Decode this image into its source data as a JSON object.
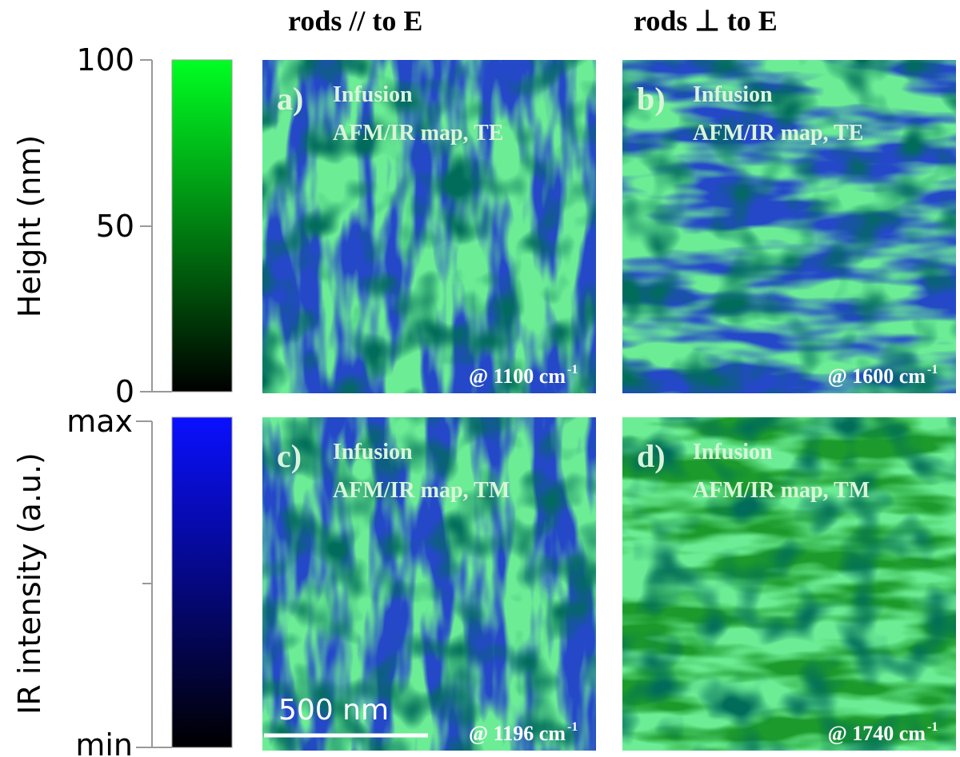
{
  "columns": [
    "rods  // to E",
    "rods ⊥ to E"
  ],
  "height_bar": {
    "label": "Height (nm)",
    "ticks": [
      "100",
      "50",
      "0"
    ]
  },
  "ir_bar": {
    "label": "IR intensity (a.u.)",
    "ticks": [
      "max",
      "min"
    ]
  },
  "panels": [
    {
      "letter": "a)",
      "line1": "Infusion",
      "line2": "AFM/IR map, TE",
      "wavenumber": "@ 1100 cm",
      "exponent": "-1"
    },
    {
      "letter": "b)",
      "line1": "Infusion",
      "line2": "AFM/IR map, TE",
      "wavenumber": "@ 1600 cm",
      "exponent": "-1"
    },
    {
      "letter": "c)",
      "line1": "Infusion",
      "line2": "AFM/IR map, TM",
      "wavenumber": "@ 1196 cm",
      "exponent": "-1"
    },
    {
      "letter": "d)",
      "line1": "Infusion",
      "line2": "AFM/IR map, TM",
      "wavenumber": "@ 1740 cm",
      "exponent": "-1"
    }
  ],
  "scale_bar": "500 nm"
}
